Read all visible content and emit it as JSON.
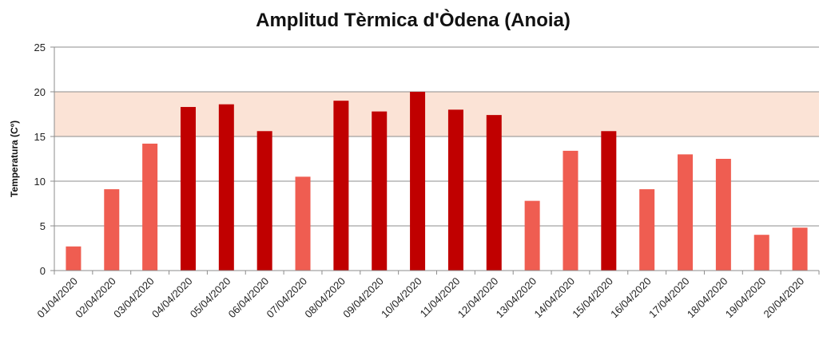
{
  "chart_data": {
    "type": "bar",
    "title": "Amplitud Tèrmica d'Òdena (Anoia)",
    "xlabel": "",
    "ylabel": "Temperatura (Cº)",
    "ylim": [
      0,
      25
    ],
    "yticks": [
      0,
      5,
      10,
      15,
      20,
      25
    ],
    "grid": "horizontal",
    "highlight_band": {
      "from": 15,
      "to": 20,
      "color": "#fbe3d6"
    },
    "colors": {
      "normal": "#ef5d51",
      "high": "#c00000",
      "grid": "#8c8c8c",
      "axis": "#8c8c8c"
    },
    "categories": [
      "01/04/2020",
      "02/04/2020",
      "03/04/2020",
      "04/04/2020",
      "05/04/2020",
      "06/04/2020",
      "07/04/2020",
      "08/04/2020",
      "09/04/2020",
      "10/04/2020",
      "11/04/2020",
      "12/04/2020",
      "13/04/2020",
      "14/04/2020",
      "15/04/2020",
      "16/04/2020",
      "17/04/2020",
      "18/04/2020",
      "19/04/2020",
      "20/04/2020"
    ],
    "values": [
      2.7,
      9.1,
      14.2,
      18.3,
      18.6,
      15.6,
      10.5,
      19.0,
      17.8,
      20.0,
      18.0,
      17.4,
      7.8,
      13.4,
      15.6,
      9.1,
      13.0,
      12.5,
      4.0,
      4.8
    ],
    "bar_color_group": [
      "normal",
      "normal",
      "normal",
      "high",
      "high",
      "high",
      "normal",
      "high",
      "high",
      "high",
      "high",
      "high",
      "normal",
      "normal",
      "high",
      "normal",
      "normal",
      "normal",
      "normal",
      "normal"
    ]
  }
}
